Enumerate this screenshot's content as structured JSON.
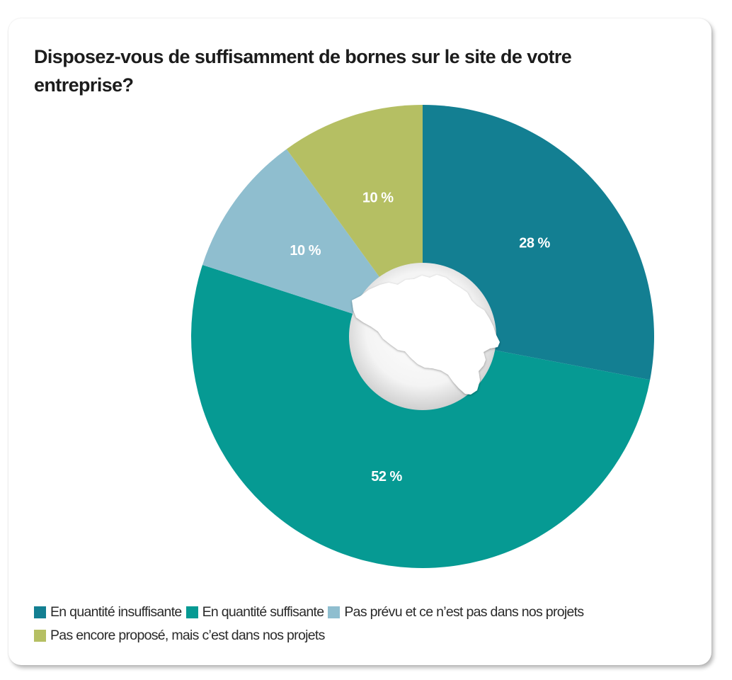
{
  "chart_data": {
    "type": "pie",
    "title": "Disposez-vous de suffisamment de bornes sur le site de votre entreprise?",
    "categories": [
      "En quantité insuffisante",
      "En quantité suffisante",
      "Pas prévu et ce n’est pas dans nos projets",
      "Pas encore proposé, mais c’est dans nos projets"
    ],
    "values": [
      28,
      52,
      10,
      10
    ],
    "value_labels": [
      "28 %",
      "52 %",
      "10 %",
      "10 %"
    ],
    "colors": [
      "#137F92",
      "#069A93",
      "#8FBECF",
      "#B5BF63"
    ],
    "donut": true,
    "legend_position": "bottom-left"
  }
}
